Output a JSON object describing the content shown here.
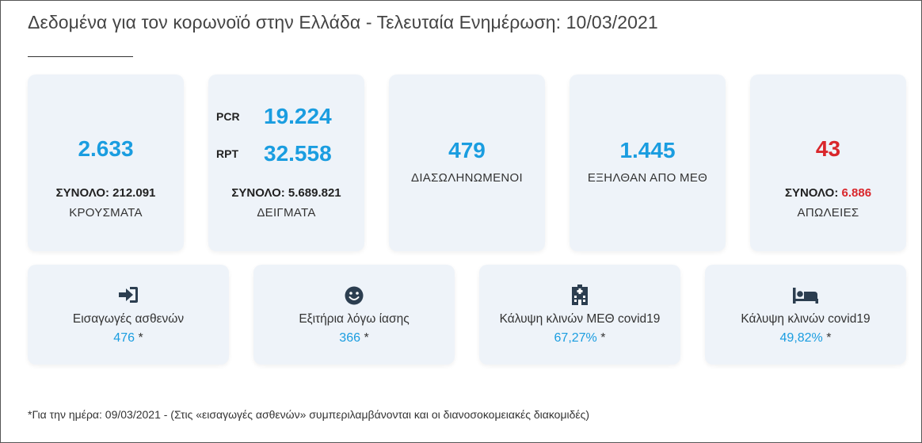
{
  "title": "Δεδομένα για τον κορωνοϊό στην Ελλάδα - Τελευταία Ενημέρωση: 10/03/2021",
  "colors": {
    "accent": "#1a9de0",
    "alert": "#d9262b",
    "card_bg": "#eef3f9"
  },
  "cases": {
    "today": "2.633",
    "total_label": "ΣΥΝΟΛΟ:",
    "total": "212.091",
    "caption": "ΚΡΟΥΣΜΑΤΑ"
  },
  "tests": {
    "pcr_label": "PCR",
    "pcr": "19.224",
    "rpt_label": "RPT",
    "rpt": "32.558",
    "total_label": "ΣΥΝΟΛΟ:",
    "total": "5.689.821",
    "caption": "ΔΕΙΓΜΑΤΑ"
  },
  "intubated": {
    "value": "479",
    "caption": "ΔΙΑΣΩΛΗΝΩΜΕΝΟΙ"
  },
  "icu_discharged": {
    "value": "1.445",
    "caption": "ΕΞΗΛΘΑΝ ΑΠΟ ΜΕΘ"
  },
  "deaths": {
    "today": "43",
    "total_label": "ΣΥΝΟΛΟ:",
    "total": "6.886",
    "caption": "ΑΠΩΛΕΙΕΣ"
  },
  "stats": [
    {
      "icon": "sign-in-icon",
      "label": "Εισαγωγές ασθενών",
      "value": "476",
      "star": "*"
    },
    {
      "icon": "smile-icon",
      "label": "Εξιτήρια λόγω ίασης",
      "value": "366",
      "star": "*"
    },
    {
      "icon": "hospital-icon",
      "label": "Κάλυψη κλινών ΜΕΘ covid19",
      "value": "67,27%",
      "star": "*"
    },
    {
      "icon": "bed-icon",
      "label": "Κάλυψη κλινών covid19",
      "value": "49,82%",
      "star": "*"
    }
  ],
  "footnote": "*Για την ημέρα: 09/03/2021 - (Στις «εισαγωγές ασθενών» συμπεριλαμβάνονται και οι διανοσοκομειακές διακομιδές)"
}
